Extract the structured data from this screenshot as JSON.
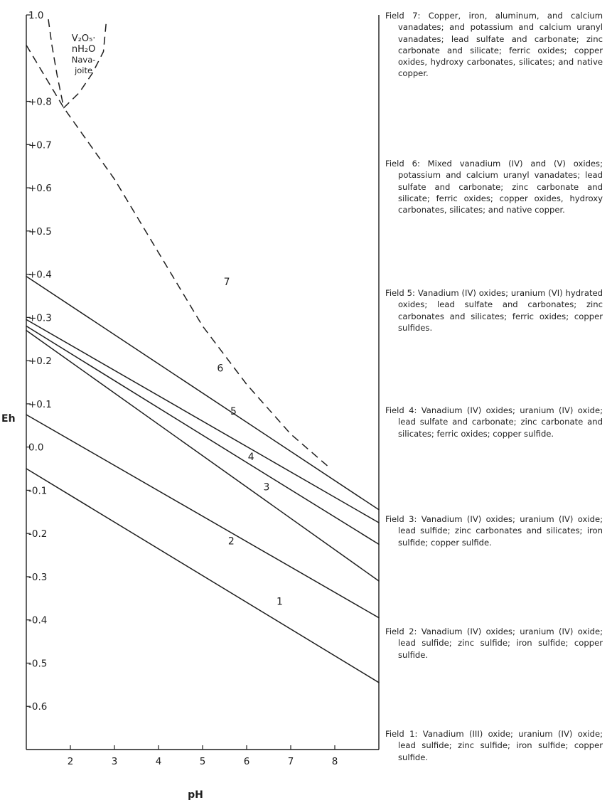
{
  "chart_data": {
    "type": "line",
    "xlabel": "pH",
    "ylabel": "Eh",
    "xlim": [
      1.0,
      9.0
    ],
    "ylim": [
      -0.7,
      1.0
    ],
    "x_ticks": [
      2,
      3,
      4,
      5,
      6,
      7,
      8
    ],
    "y_ticks": [
      {
        "value": 1.0,
        "label": "1.0"
      },
      {
        "value": 0.8,
        "label": "+0.8"
      },
      {
        "value": 0.7,
        "label": "+0.7"
      },
      {
        "value": 0.6,
        "label": "+0.6"
      },
      {
        "value": 0.5,
        "label": "+0.5"
      },
      {
        "value": 0.4,
        "label": "+0.4"
      },
      {
        "value": 0.3,
        "label": "+0.3"
      },
      {
        "value": 0.2,
        "label": "+0.2"
      },
      {
        "value": 0.1,
        "label": "+0.1"
      },
      {
        "value": 0.0,
        "label": "0.0"
      },
      {
        "value": -0.1,
        "label": "-0.1"
      },
      {
        "value": -0.2,
        "label": "-0.2"
      },
      {
        "value": -0.3,
        "label": "-0.3"
      },
      {
        "value": -0.4,
        "label": "-0.4"
      },
      {
        "value": -0.5,
        "label": "-0.5"
      },
      {
        "value": -0.6,
        "label": "-0.6"
      }
    ],
    "boundaries": [
      {
        "style": "solid",
        "points": [
          [
            1.0,
            -0.05
          ],
          [
            9.0,
            -0.545
          ]
        ]
      },
      {
        "style": "solid",
        "points": [
          [
            1.0,
            0.075
          ],
          [
            9.0,
            -0.395
          ]
        ]
      },
      {
        "style": "solid",
        "points": [
          [
            1.0,
            0.27
          ],
          [
            9.0,
            -0.31
          ]
        ]
      },
      {
        "style": "solid",
        "points": [
          [
            1.0,
            0.28
          ],
          [
            9.0,
            -0.225
          ]
        ]
      },
      {
        "style": "solid",
        "points": [
          [
            1.0,
            0.295
          ],
          [
            9.0,
            -0.175
          ]
        ]
      },
      {
        "style": "solid",
        "points": [
          [
            1.0,
            0.395
          ],
          [
            9.0,
            -0.145
          ]
        ]
      },
      {
        "style": "dashed",
        "points": [
          [
            1.0,
            0.93
          ],
          [
            1.85,
            0.785
          ],
          [
            3.0,
            0.62
          ],
          [
            4.0,
            0.45
          ],
          [
            5.0,
            0.28
          ],
          [
            6.0,
            0.145
          ],
          [
            7.0,
            0.03
          ],
          [
            7.85,
            -0.045
          ]
        ]
      },
      {
        "style": "dashed",
        "points": [
          [
            1.5,
            0.99
          ],
          [
            1.58,
            0.93
          ],
          [
            1.7,
            0.86
          ],
          [
            1.85,
            0.785
          ],
          [
            2.2,
            0.82
          ],
          [
            2.5,
            0.865
          ],
          [
            2.75,
            0.915
          ],
          [
            2.82,
            0.99
          ]
        ]
      }
    ],
    "field_labels": [
      {
        "text": "1",
        "x": 6.75,
        "y": -0.365
      },
      {
        "text": "2",
        "x": 5.65,
        "y": -0.225
      },
      {
        "text": "3",
        "x": 6.45,
        "y": -0.1
      },
      {
        "text": "4",
        "x": 6.1,
        "y": -0.03
      },
      {
        "text": "5",
        "x": 5.7,
        "y": 0.075
      },
      {
        "text": "6",
        "x": 5.4,
        "y": 0.175
      },
      {
        "text": "7",
        "x": 5.55,
        "y": 0.375
      }
    ],
    "region_label": {
      "lines": [
        "V₂O₅·",
        "nH₂O",
        "Nava-",
        "joite"
      ],
      "x": 2.3,
      "y": 0.9
    }
  },
  "fields": [
    {
      "title": "Field 7:",
      "text": "Copper, iron, aluminum, and calcium vanadates; and potassium and calcium uranyl vanadates; lead sulfate and carbonate; zinc carbonate and silicate; ferric oxides; copper oxides, hydroxy carbonates, silicates; and native copper."
    },
    {
      "title": "Field 6:",
      "text": "Mixed vanadium (IV) and (V) oxides; potassium and calcium uranyl vanadates; lead sulfate and carbonate; zinc carbonate and silicate; ferric oxides; copper oxides, hydroxy carbonates, silicates; and native copper."
    },
    {
      "title": "Field 5:",
      "text": "Vanadium (IV) oxides; uranium (VI) hydrated oxides; lead sulfate and carbonates; zinc carbonates and silicates; ferric oxides; copper sulfides."
    },
    {
      "title": "Field 4:",
      "text": "Vanadium (IV) oxides; uranium (IV) oxide; lead sulfate and carbonate; zinc carbonate and silicates; ferric oxides; copper sulfide."
    },
    {
      "title": "Field 3:",
      "text": "Vanadium (IV) oxides; uranium (IV) oxide; lead sulfide; zinc carbonates and silicates; iron sulfide; copper sulfide."
    },
    {
      "title": "Field 2:",
      "text": "Vanadium (IV) oxides; uranium (IV) oxide; lead sulfide; zinc sulfide; iron sulfide; copper sulfide."
    },
    {
      "title": "Field 1:",
      "text": "Vanadium (III) oxide; uranium (IV) oxide; lead sulfide; zinc sulfide; iron sulfide; copper sulfide."
    }
  ]
}
